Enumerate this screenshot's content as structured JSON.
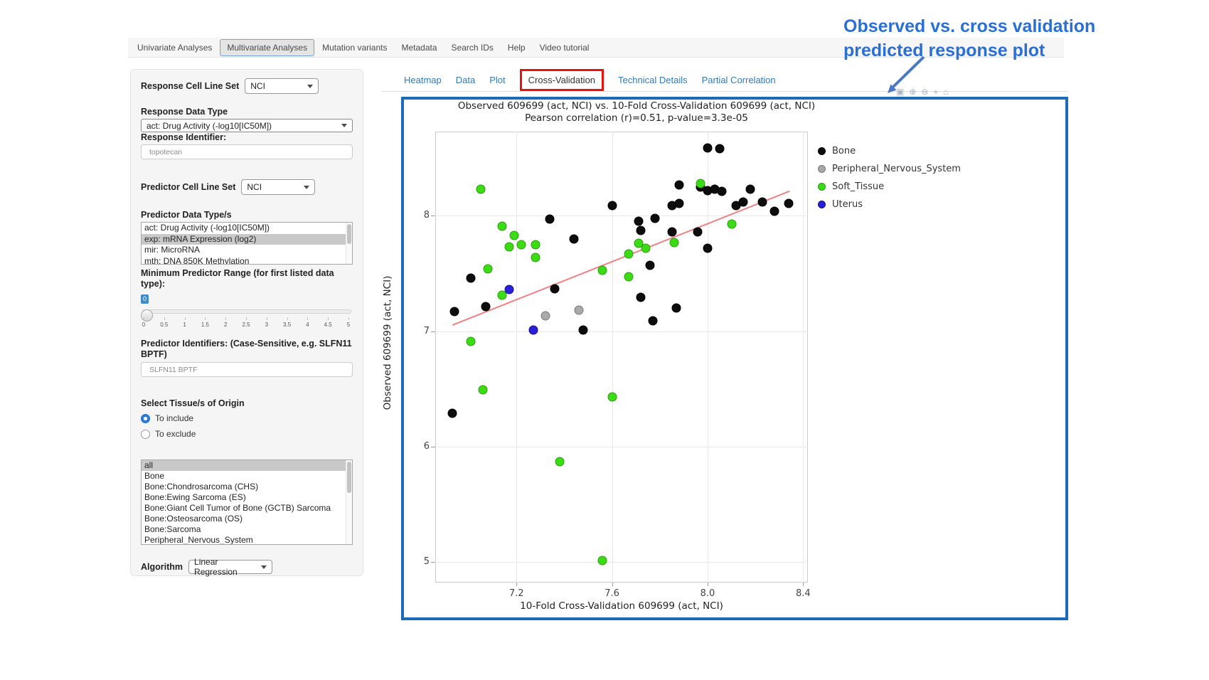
{
  "nav": {
    "tabs": [
      {
        "label": "Univariate Analyses",
        "active": false
      },
      {
        "label": "Multivariate Analyses",
        "active": true
      },
      {
        "label": "Mutation variants",
        "active": false
      },
      {
        "label": "Metadata",
        "active": false
      },
      {
        "label": "Search IDs",
        "active": false
      },
      {
        "label": "Help",
        "active": false
      },
      {
        "label": "Video tutorial",
        "active": false
      }
    ]
  },
  "sidebar": {
    "response_cell_line_set": {
      "label": "Response Cell Line Set",
      "value": "NCI"
    },
    "response_data_type": {
      "label": "Response Data Type",
      "value": "act: Drug Activity (-log10[IC50M])"
    },
    "response_identifier": {
      "label": "Response Identifier:",
      "value": "topotecan"
    },
    "predictor_cell_line_set": {
      "label": "Predictor Cell Line Set",
      "value": "NCI"
    },
    "predictor_data_types": {
      "label": "Predictor Data Type/s",
      "options": [
        "act: Drug Activity (-log10[IC50M])",
        "exp: mRNA Expression (log2)",
        "mir: MicroRNA",
        "mth: DNA 850K Methylation"
      ],
      "selected": "exp: mRNA Expression (log2)"
    },
    "min_predictor_range": {
      "label_line1": "Minimum Predictor Range (for first listed data",
      "label_line2": "type):",
      "value": "0",
      "tick_labels": [
        "0",
        "0.5",
        "1",
        "1.5",
        "2",
        "2.5",
        "3",
        "3.5",
        "4",
        "4.5",
        "5"
      ]
    },
    "predictor_identifiers": {
      "label_line1": "Predictor Identifiers: (Case-Sensitive, e.g. SLFN11",
      "label_line2": "BPTF)",
      "value": "SLFN11 BPTF"
    },
    "tissue": {
      "label": "Select Tissue/s of Origin",
      "include_label": "To include",
      "exclude_label": "To exclude",
      "include_selected": true,
      "options": [
        "all",
        "Bone",
        "Bone:Chondrosarcoma (CHS)",
        "Bone:Ewing Sarcoma (ES)",
        "Bone:Giant Cell Tumor of Bone (GCTB) Sarcoma",
        "Bone:Osteosarcoma (OS)",
        "Bone:Sarcoma",
        "Peripheral_Nervous_System"
      ],
      "selected": "all"
    },
    "algorithm": {
      "label": "Algorithm",
      "value": "Linear Regression"
    }
  },
  "content_tabs": [
    {
      "label": "Heatmap",
      "active": false
    },
    {
      "label": "Data",
      "active": false
    },
    {
      "label": "Plot",
      "active": false
    },
    {
      "label": "Cross-Validation",
      "active": true
    },
    {
      "label": "Technical Details",
      "active": false
    },
    {
      "label": "Partial Correlation",
      "active": false
    }
  ],
  "annotation": {
    "line1": "Observed vs. cross validation",
    "line2": "predicted response plot",
    "color": "#2a6fd6"
  },
  "modebar": {
    "icons": [
      {
        "name": "camera-icon",
        "glyph": "▣"
      },
      {
        "name": "zoom-in-icon",
        "glyph": "⊕"
      },
      {
        "name": "zoom-out-icon",
        "glyph": "⊖"
      },
      {
        "name": "crosshair-icon",
        "glyph": "⌖"
      },
      {
        "name": "home-icon",
        "glyph": "⌂"
      }
    ]
  },
  "chart_data": {
    "type": "scatter",
    "title": "Observed 609699 (act, NCI) vs. 10-Fold Cross-Validation 609699 (act, NCI)",
    "subtitle": "Pearson correlation (r)=0.51, p-value=3.3e-05",
    "pearson_r": 0.51,
    "p_value": "3.3e-05",
    "xlabel": "10-Fold Cross-Validation 609699 (act, NCI)",
    "ylabel": "Observed 609699 (act, NCI)",
    "xlim": [
      6.86,
      8.42
    ],
    "ylim": [
      4.82,
      8.73
    ],
    "xticks": [
      {
        "v": 7.2,
        "label": "7.2"
      },
      {
        "v": 7.6,
        "label": "7.6"
      },
      {
        "v": 8.0,
        "label": "8.0"
      },
      {
        "v": 8.4,
        "label": "8.4"
      }
    ],
    "yticks": [
      {
        "v": 5,
        "label": "5"
      },
      {
        "v": 6,
        "label": "6"
      },
      {
        "v": 7,
        "label": "7"
      },
      {
        "v": 8,
        "label": "8"
      }
    ],
    "grid": true,
    "legend_position": "right-outside",
    "trend_line": {
      "x1": 6.93,
      "y1": 7.06,
      "x2": 8.34,
      "y2": 8.22,
      "color": "#f28080"
    },
    "series": [
      {
        "name": "Bone",
        "color": "#0d0d0d",
        "stroke": "#000000",
        "points": [
          [
            8.0,
            8.59
          ],
          [
            8.05,
            8.58
          ],
          [
            7.88,
            8.27
          ],
          [
            7.97,
            8.25
          ],
          [
            8.0,
            8.22
          ],
          [
            8.03,
            8.23
          ],
          [
            8.06,
            8.21
          ],
          [
            8.18,
            8.23
          ],
          [
            7.6,
            8.09
          ],
          [
            7.85,
            8.09
          ],
          [
            7.88,
            8.11
          ],
          [
            8.12,
            8.09
          ],
          [
            8.15,
            8.12
          ],
          [
            8.23,
            8.12
          ],
          [
            8.28,
            8.04
          ],
          [
            8.34,
            8.11
          ],
          [
            7.34,
            7.97
          ],
          [
            7.71,
            7.95
          ],
          [
            7.72,
            7.87
          ],
          [
            7.78,
            7.98
          ],
          [
            7.96,
            7.86
          ],
          [
            7.85,
            7.86
          ],
          [
            7.44,
            7.8
          ],
          [
            8.0,
            7.72
          ],
          [
            7.76,
            7.57
          ],
          [
            7.01,
            7.46
          ],
          [
            7.36,
            7.37
          ],
          [
            7.72,
            7.29
          ],
          [
            7.07,
            7.21
          ],
          [
            7.87,
            7.2
          ],
          [
            6.94,
            7.17
          ],
          [
            7.77,
            7.09
          ],
          [
            7.48,
            7.01
          ],
          [
            6.93,
            6.29
          ]
        ]
      },
      {
        "name": "Peripheral_Nervous_System",
        "color": "#a9a9a9",
        "stroke": "#787878",
        "points": [
          [
            7.32,
            7.13
          ],
          [
            7.46,
            7.18
          ]
        ]
      },
      {
        "name": "Soft_Tissue",
        "color": "#3bdc16",
        "stroke": "#2a9e0d",
        "points": [
          [
            7.05,
            8.23
          ],
          [
            7.97,
            8.28
          ],
          [
            8.1,
            7.93
          ],
          [
            7.14,
            7.91
          ],
          [
            7.19,
            7.83
          ],
          [
            7.17,
            7.73
          ],
          [
            7.22,
            7.75
          ],
          [
            7.28,
            7.75
          ],
          [
            7.71,
            7.76
          ],
          [
            7.74,
            7.72
          ],
          [
            7.86,
            7.77
          ],
          [
            7.28,
            7.64
          ],
          [
            7.67,
            7.67
          ],
          [
            7.08,
            7.54
          ],
          [
            7.56,
            7.53
          ],
          [
            7.67,
            7.47
          ],
          [
            7.14,
            7.31
          ],
          [
            7.01,
            6.91
          ],
          [
            7.06,
            6.49
          ],
          [
            7.6,
            6.43
          ],
          [
            7.38,
            5.87
          ],
          [
            7.56,
            5.01
          ]
        ]
      },
      {
        "name": "Uterus",
        "color": "#2a1fd8",
        "stroke": "#17108f",
        "points": [
          [
            7.17,
            7.36
          ],
          [
            7.27,
            7.01
          ]
        ]
      }
    ]
  }
}
